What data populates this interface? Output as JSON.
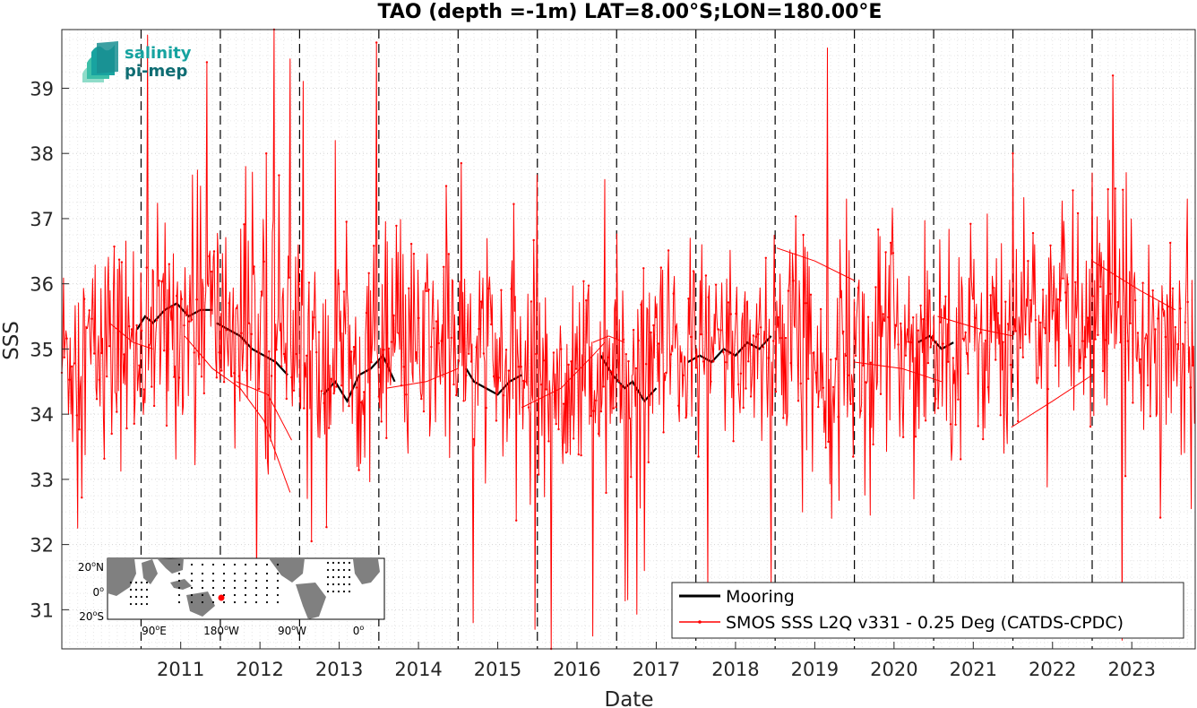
{
  "chart_data": {
    "type": "line",
    "title": "TAO (depth =-1m) LAT=8.00°S;LON=180.00°E",
    "xlabel": "Date",
    "ylabel": "SSS",
    "xlim": [
      2010.0,
      2024.3
    ],
    "ylim": [
      30.4,
      39.9
    ],
    "grid": true,
    "legend_placement": "bottom-right",
    "x_ticks": [
      "2011",
      "2012",
      "2013",
      "2014",
      "2015",
      "2016",
      "2017",
      "2018",
      "2019",
      "2020",
      "2021",
      "2022",
      "2023"
    ],
    "y_ticks": [
      "31",
      "32",
      "33",
      "34",
      "35",
      "36",
      "37",
      "38",
      "39"
    ],
    "year_boundaries": [
      2011,
      2012,
      2013,
      2014,
      2015,
      2016,
      2017,
      2018,
      2019,
      2020,
      2021,
      2022,
      2023
    ],
    "series": [
      {
        "name": "Mooring",
        "color": "#000000",
        "segments": [
          {
            "x": [
              2010.95,
              2011.05,
              2011.15,
              2011.3,
              2011.45,
              2011.6,
              2011.75,
              2011.9
            ],
            "y": [
              35.3,
              35.5,
              35.4,
              35.6,
              35.7,
              35.5,
              35.6,
              35.6
            ]
          },
          {
            "x": [
              2011.95,
              2012.1,
              2012.25,
              2012.4,
              2012.55,
              2012.7,
              2012.85
            ],
            "y": [
              35.4,
              35.3,
              35.2,
              35.0,
              34.9,
              34.8,
              34.6
            ]
          },
          {
            "x": [
              2013.3,
              2013.45,
              2013.6,
              2013.75,
              2013.9,
              2014.05,
              2014.2
            ],
            "y": [
              34.3,
              34.5,
              34.2,
              34.6,
              34.7,
              34.9,
              34.5
            ]
          },
          {
            "x": [
              2015.1,
              2015.2,
              2015.35,
              2015.5,
              2015.65,
              2015.8
            ],
            "y": [
              34.7,
              34.5,
              34.4,
              34.3,
              34.5,
              34.6
            ]
          },
          {
            "x": [
              2016.8,
              2016.95,
              2017.1,
              2017.2,
              2017.35,
              2017.5
            ],
            "y": [
              34.9,
              34.6,
              34.4,
              34.5,
              34.2,
              34.4
            ]
          },
          {
            "x": [
              2017.9,
              2018.05,
              2018.2,
              2018.35,
              2018.5,
              2018.65,
              2018.8,
              2018.95
            ],
            "y": [
              34.8,
              34.9,
              34.8,
              35.0,
              34.9,
              35.1,
              35.0,
              35.2
            ]
          },
          {
            "x": [
              2020.8,
              2020.95,
              2021.1,
              2021.25
            ],
            "y": [
              35.1,
              35.2,
              35.0,
              35.1
            ]
          }
        ]
      },
      {
        "name": "SMOS SSS L2Q v331 - 0.25 Deg (CATDS-CPDC)",
        "color": "#ff0000",
        "generated": {
          "x_start": 2010.0,
          "x_end": 2024.3,
          "step": 0.0105,
          "seed": 12345,
          "noise_sd": 0.85,
          "spike_prob": 0.035,
          "spike_sd": 2.2,
          "baseline": [
            [
              2010.0,
              34.9
            ],
            [
              2011.0,
              35.1
            ],
            [
              2011.8,
              35.6
            ],
            [
              2012.5,
              35.1
            ],
            [
              2013.2,
              34.7
            ],
            [
              2014.2,
              34.9
            ],
            [
              2015.0,
              35.1
            ],
            [
              2015.6,
              34.6
            ],
            [
              2016.3,
              34.7
            ],
            [
              2017.0,
              34.5
            ],
            [
              2017.8,
              34.9
            ],
            [
              2018.6,
              35.1
            ],
            [
              2019.2,
              35.0
            ],
            [
              2019.8,
              34.9
            ],
            [
              2020.6,
              35.2
            ],
            [
              2021.5,
              35.2
            ],
            [
              2022.2,
              35.4
            ],
            [
              2022.9,
              35.6
            ],
            [
              2023.5,
              35.6
            ],
            [
              2024.3,
              35.0
            ]
          ],
          "anchors": [
            [
              2011.83,
              39.4
            ],
            [
              2012.88,
              39.45
            ],
            [
              2013.97,
              39.7
            ],
            [
              2013.45,
              38.2
            ],
            [
              2015.19,
              30.8
            ],
            [
              2015.97,
              30.7
            ],
            [
              2018.15,
              31.25
            ],
            [
              2018.95,
              31.3
            ],
            [
              2022.0,
              38.0
            ],
            [
              2012.58,
              38.0
            ],
            [
              2012.32,
              37.8
            ],
            [
              2011.75,
              37.5
            ],
            [
              2010.2,
              32.25
            ],
            [
              2014.85,
              37.5
            ],
            [
              2016.85,
              37.6
            ],
            [
              2019.9,
              37.3
            ],
            [
              2023.0,
              37.7
            ],
            [
              2023.2,
              37.45
            ],
            [
              2024.2,
              37.3
            ],
            [
              2013.15,
              32.05
            ],
            [
              2017.35,
              31.6
            ],
            [
              2020.2,
              32.45
            ],
            [
              2024.25,
              32.55
            ],
            [
              2020.75,
              32.7
            ]
          ]
        },
        "segments": [
          {
            "x": [
              2010.6,
              2010.9,
              2011.15
            ],
            "y": [
              35.4,
              35.1,
              35.0
            ]
          },
          {
            "x": [
              2011.55,
              2011.9,
              2012.25,
              2012.55,
              2012.88
            ],
            "y": [
              35.2,
              34.7,
              34.4,
              33.9,
              32.8
            ]
          },
          {
            "x": [
              2012.2,
              2012.6,
              2012.9
            ],
            "y": [
              34.5,
              34.3,
              33.6
            ]
          },
          {
            "x": [
              2014.1,
              2014.6,
              2015.0
            ],
            "y": [
              34.4,
              34.5,
              34.7
            ]
          },
          {
            "x": [
              2015.8,
              2016.3,
              2016.7,
              2016.85
            ],
            "y": [
              34.1,
              34.4,
              34.9,
              35.1
            ]
          },
          {
            "x": [
              2016.7,
              2016.9,
              2017.1
            ],
            "y": [
              35.1,
              35.2,
              35.1
            ]
          },
          {
            "x": [
              2019.02,
              2019.5,
              2020.0
            ],
            "y": [
              36.55,
              36.35,
              36.05
            ]
          },
          {
            "x": [
              2020.0,
              2020.6,
              2021.1
            ],
            "y": [
              34.8,
              34.7,
              34.5
            ]
          },
          {
            "x": [
              2021.05,
              2021.6,
              2022.0
            ],
            "y": [
              35.5,
              35.3,
              35.2
            ]
          },
          {
            "x": [
              2021.98,
              2022.5,
              2023.0
            ],
            "y": [
              33.8,
              34.2,
              34.6
            ]
          },
          {
            "x": [
              2023.0,
              2023.6,
              2024.05
            ],
            "y": [
              36.35,
              35.9,
              35.6
            ]
          }
        ]
      }
    ]
  },
  "logo": {
    "line1": "salinity",
    "line2": "pi-mep"
  },
  "inset_map": {
    "lat_labels": [
      "20oN",
      "0o",
      "20oS"
    ],
    "lon_labels": [
      "90oE",
      "180oW",
      "90oW",
      "0o"
    ],
    "lat_label_parts": [
      [
        "20",
        "o",
        "N"
      ],
      [
        "0",
        "o",
        ""
      ],
      [
        "20",
        "o",
        "S"
      ]
    ],
    "lon_label_parts": [
      [
        "90",
        "o",
        "E"
      ],
      [
        "180",
        "o",
        "W"
      ],
      [
        "90",
        "o",
        "W"
      ],
      [
        "0",
        "o",
        ""
      ]
    ],
    "marker_color": "#ff0000",
    "land_color": "#808080",
    "ocean_color": "#ffffff"
  }
}
